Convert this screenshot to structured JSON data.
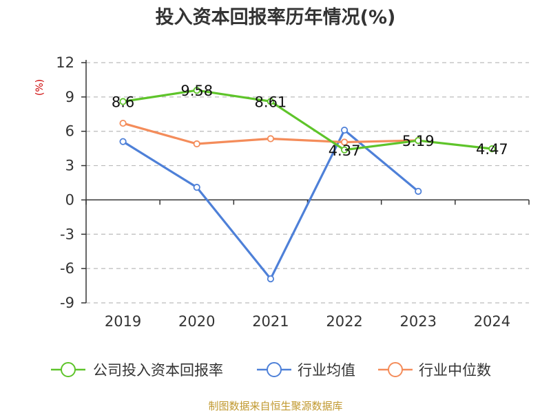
{
  "colors": {
    "company": "#5ec42a",
    "industry_avg": "#4e80d8",
    "industry_median": "#f48c5a",
    "source": "#c0982e",
    "ylabel": "#cc0000",
    "grid": "#bbbbbb",
    "axis": "#333333"
  },
  "source_text": "制图数据来自恒生聚源数据库",
  "chart_data": {
    "type": "line",
    "title": "投入资本回报率历年情况(%)",
    "ylabel": "(%)",
    "xlabel": "",
    "categories": [
      "2019",
      "2020",
      "2021",
      "2022",
      "2023",
      "2024"
    ],
    "ylim": [
      -9,
      12
    ],
    "yticks": [
      12,
      9,
      6,
      3,
      0,
      -3,
      -6,
      -9
    ],
    "grid": true,
    "legend_position": "bottom",
    "series": [
      {
        "name": "公司投入资本回报率",
        "key": "company",
        "values": [
          8.6,
          9.58,
          8.61,
          4.37,
          5.19,
          4.47
        ],
        "labels": [
          "8.6",
          "9.58",
          "8.61",
          "4.37",
          "5.19",
          "4.47"
        ]
      },
      {
        "name": "行业均值",
        "key": "industry_avg",
        "values": [
          5.1,
          1.1,
          -6.9,
          6.1,
          0.75,
          null
        ]
      },
      {
        "name": "行业中位数",
        "key": "industry_median",
        "values": [
          6.7,
          4.9,
          5.35,
          5.05,
          5.2,
          null
        ]
      }
    ]
  }
}
